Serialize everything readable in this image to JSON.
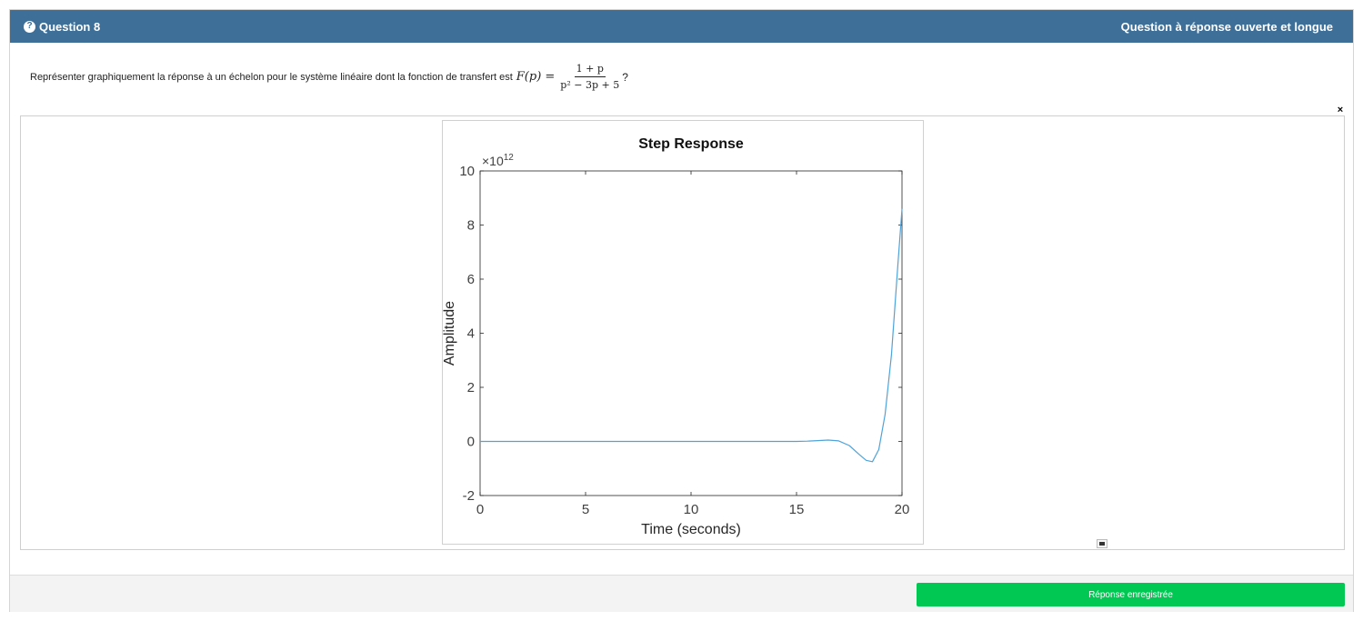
{
  "header": {
    "question_label": "Question 8",
    "question_type": "Question à réponse ouverte et longue",
    "icon": "question-circle-icon"
  },
  "question": {
    "text": "Représenter graphiquement la réponse à un échelon pour le système linéaire dont la fonction de transfert est",
    "lhs": "F(p) =",
    "numerator": "1 + p",
    "denominator": "p² − 3p + 5",
    "suffix": "?"
  },
  "answer": {
    "close_label": "×",
    "image_icon": "image-icon"
  },
  "footer": {
    "save_label": "Réponse enregistrée",
    "save_color": "#00c853"
  },
  "colors": {
    "header_bg": "#3d6f98",
    "curve": "#4fa3d9"
  },
  "chart_data": {
    "type": "line",
    "title": "Step Response",
    "xlabel": "Time (seconds)",
    "ylabel": "Amplitude",
    "y_exponent_label": "×10",
    "y_exponent_power": "12",
    "xlim": [
      0,
      20
    ],
    "ylim": [
      -2,
      10
    ],
    "xticks": [
      "0",
      "5",
      "10",
      "15",
      "20"
    ],
    "yticks": [
      "-2",
      "0",
      "2",
      "4",
      "6",
      "8",
      "10"
    ],
    "grid": false,
    "series": [
      {
        "x": [
          0,
          5,
          10,
          14,
          15,
          15.5,
          16,
          16.5,
          17,
          17.5,
          18,
          18.3,
          18.6,
          18.9,
          19.2,
          19.5,
          19.8,
          20
        ],
        "y": [
          0,
          0,
          0,
          0,
          0,
          0.01,
          0.03,
          0.05,
          0.02,
          -0.15,
          -0.5,
          -0.7,
          -0.75,
          -0.3,
          1.0,
          3.2,
          6.5,
          8.6
        ]
      }
    ]
  }
}
